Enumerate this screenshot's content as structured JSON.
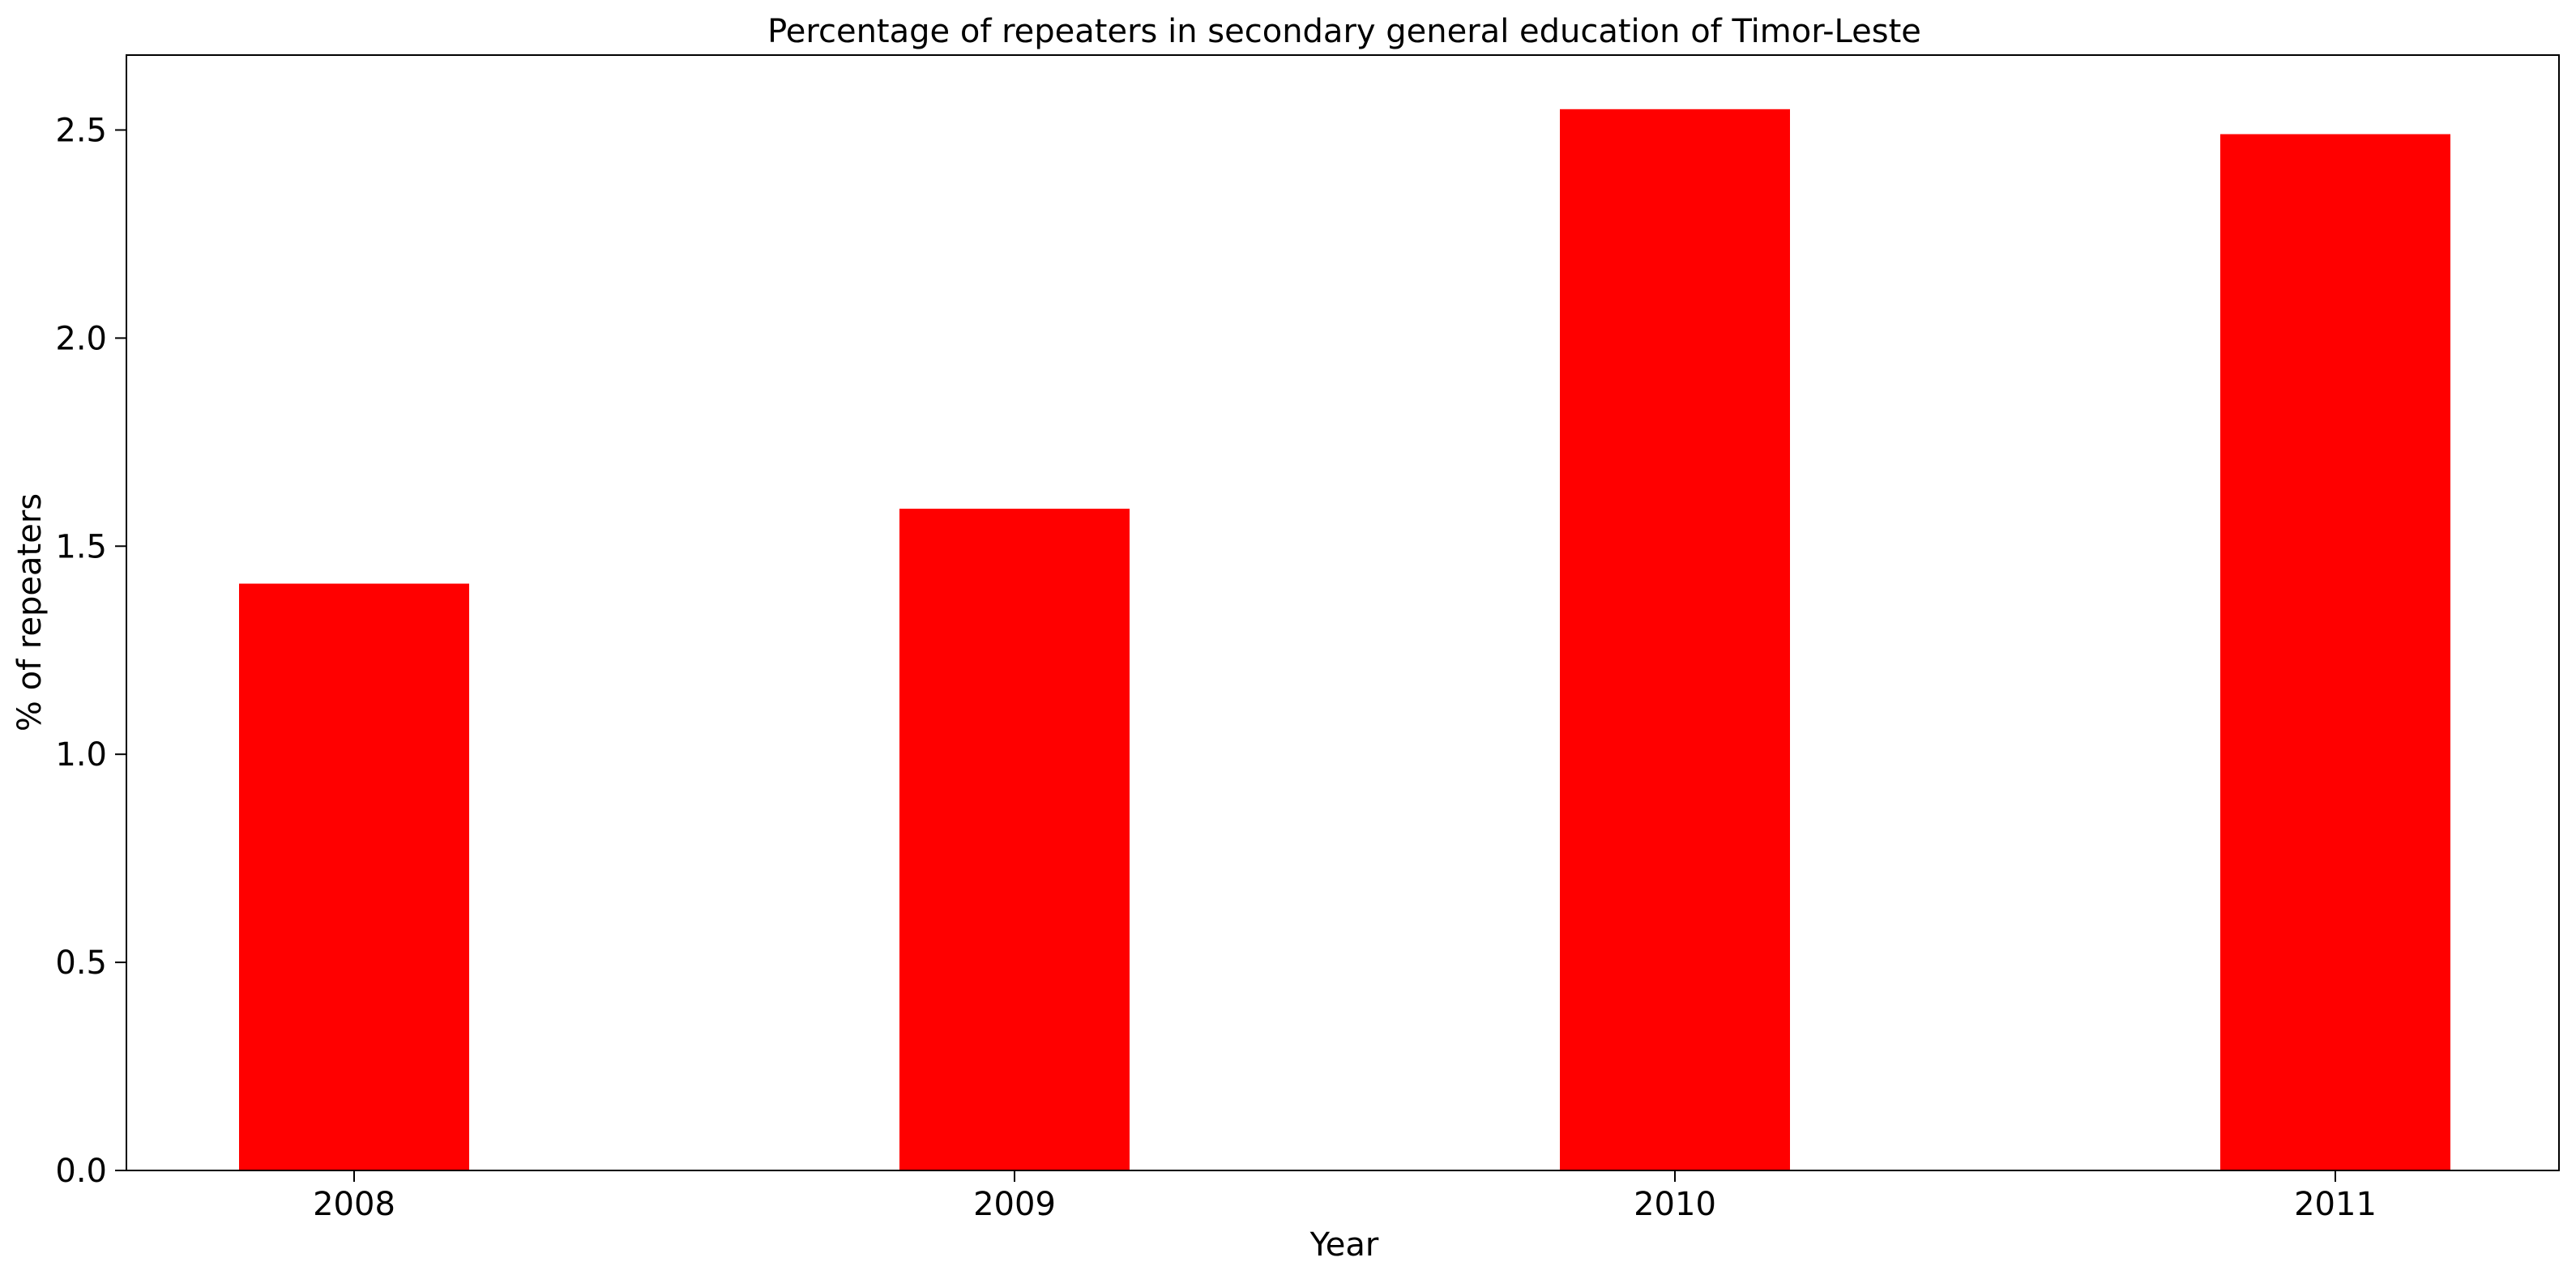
{
  "chart_data": {
    "type": "bar",
    "title": "Percentage of repeaters in secondary general education of Timor-Leste",
    "xlabel": "Year",
    "ylabel": "% of repeaters",
    "categories": [
      "2008",
      "2009",
      "2010",
      "2011"
    ],
    "values": [
      1.41,
      1.59,
      2.55,
      2.49
    ],
    "ylim": [
      0,
      2.68
    ],
    "yticks": [
      0.0,
      0.5,
      1.0,
      1.5,
      2.0,
      2.5
    ],
    "ytick_labels": [
      "0.0",
      "0.5",
      "1.0",
      "1.5",
      "2.0",
      "2.5"
    ],
    "bar_color": "#ff0000",
    "grid": false,
    "legend": "none"
  }
}
